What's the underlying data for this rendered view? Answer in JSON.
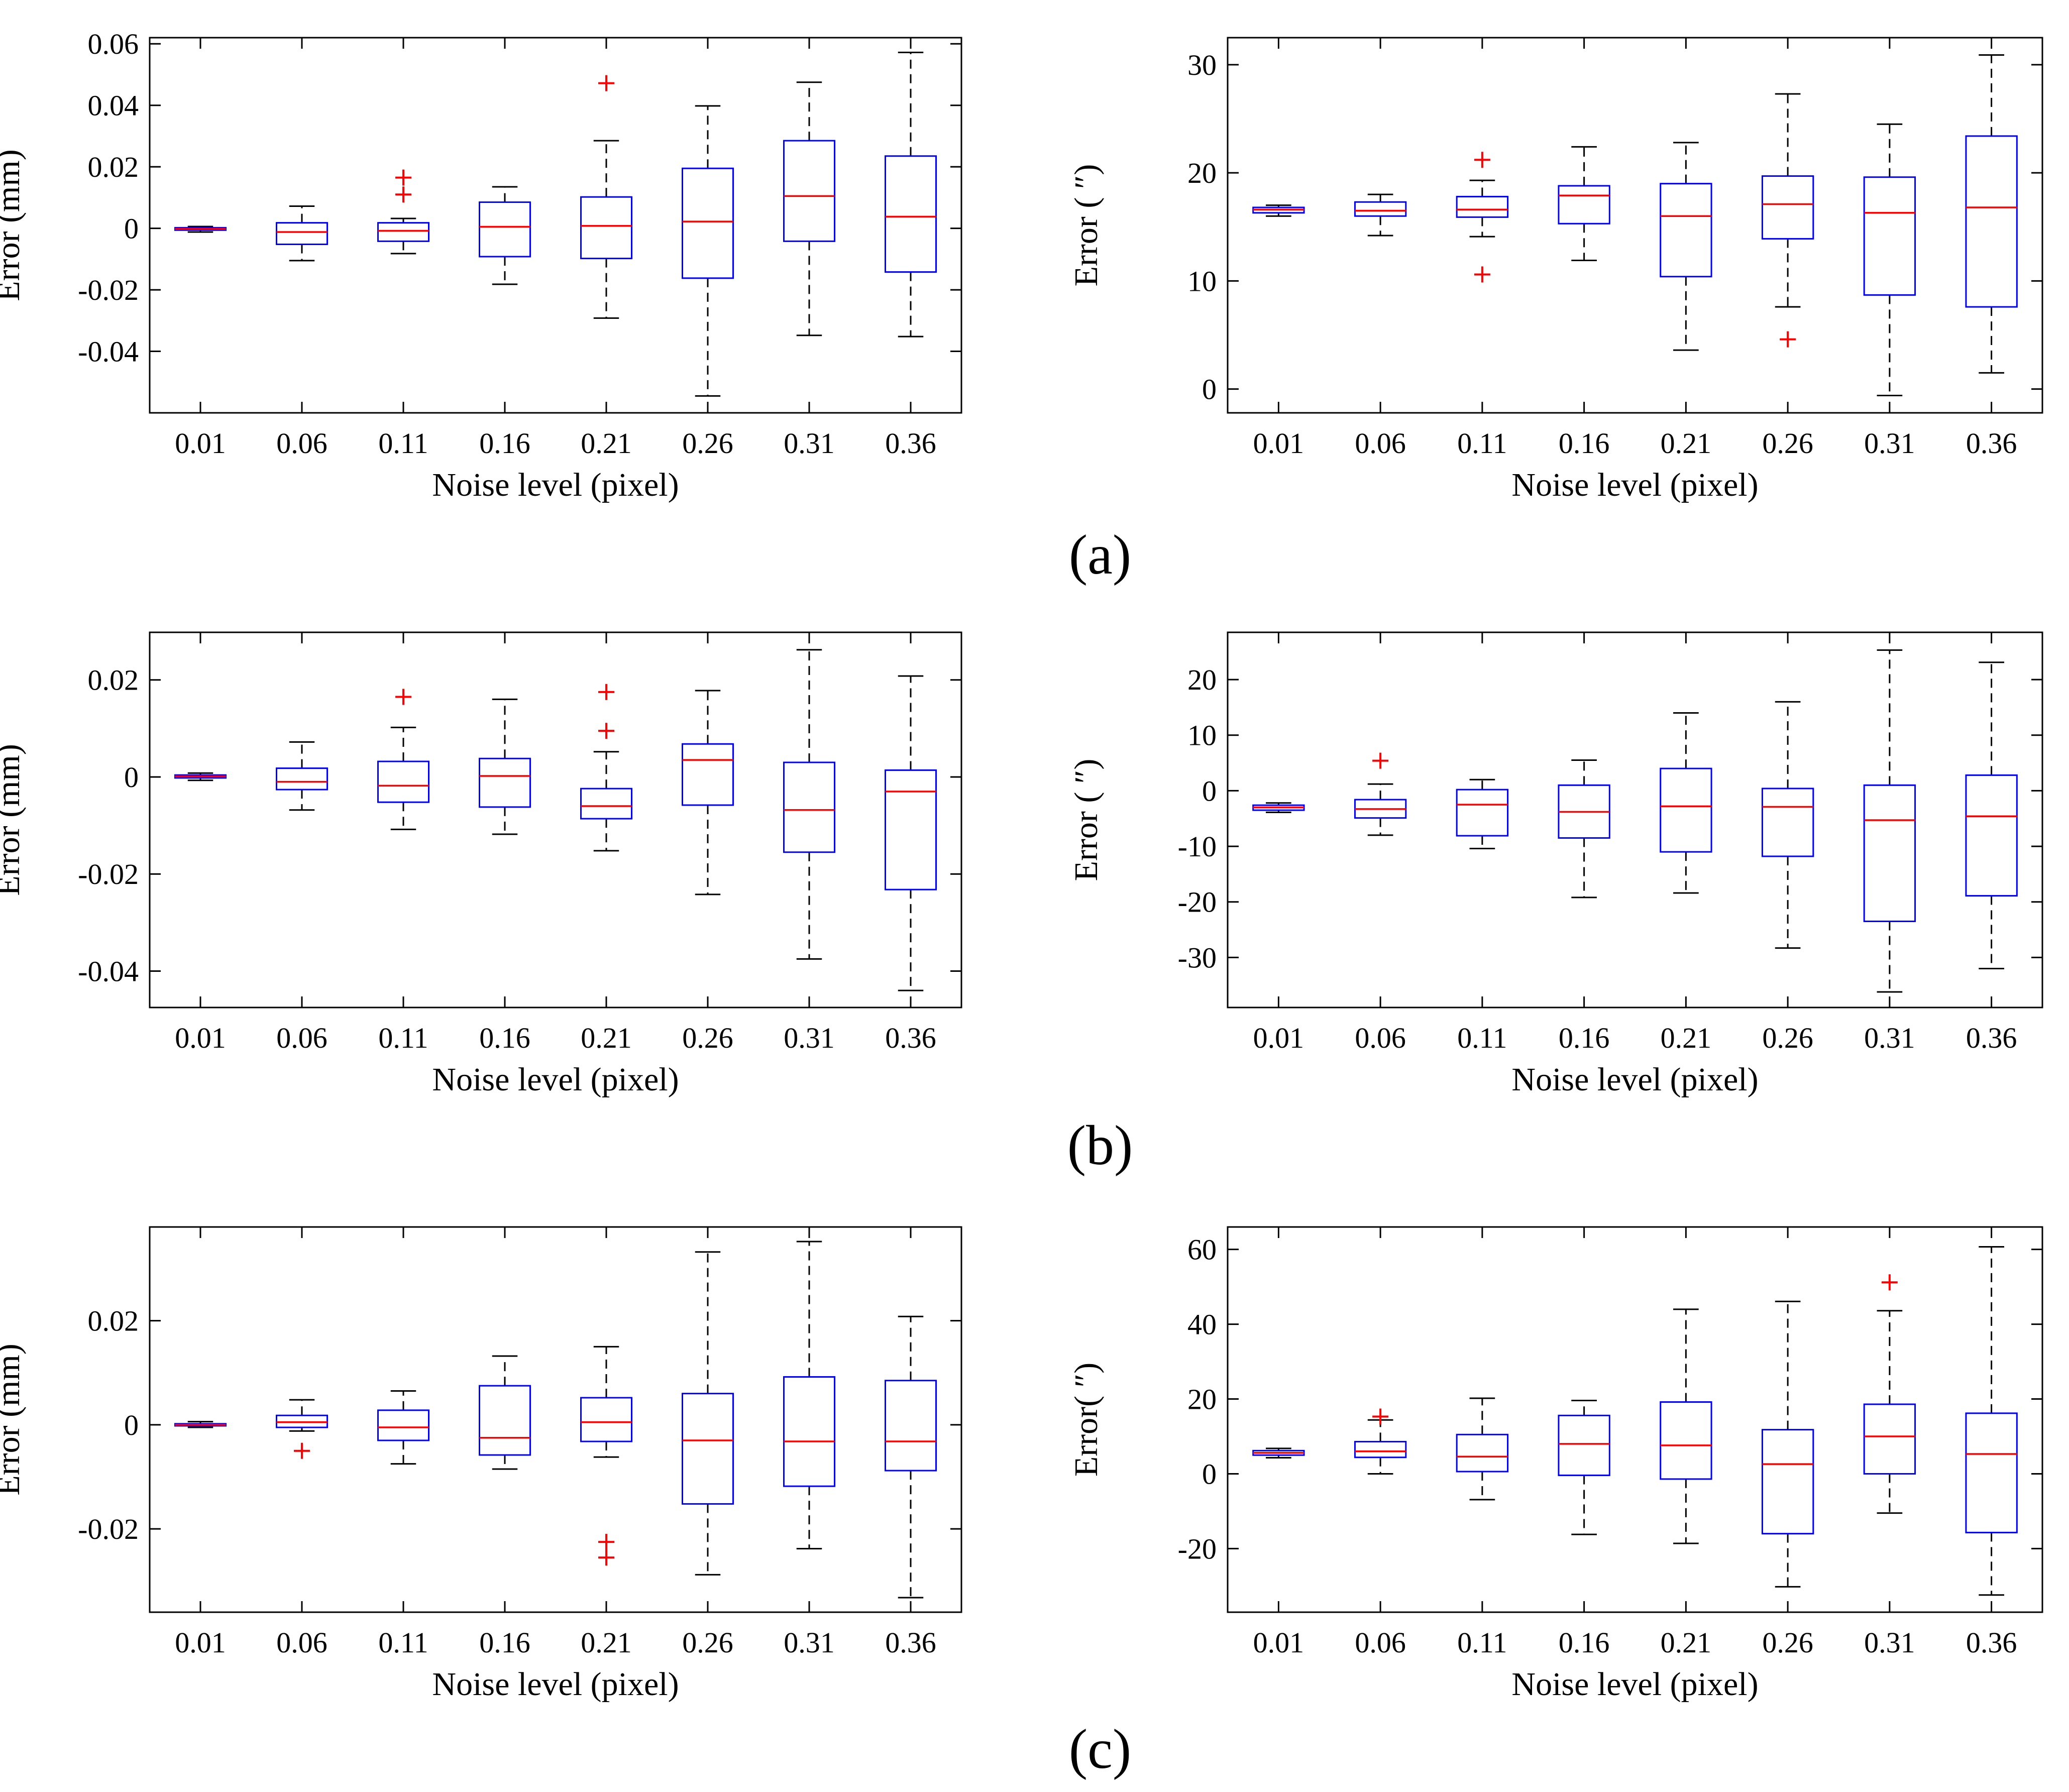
{
  "colors": {
    "box": "#0000ff",
    "median": "#ff0000",
    "outlier": "#ff0000",
    "whisker": "#000000",
    "axis": "#000000"
  },
  "figure_labels": [
    "(a)",
    "(b)",
    "(c)"
  ],
  "chart_data": [
    {
      "type": "boxplot",
      "row": 0,
      "col": 0,
      "xlabel": "Noise level (pixel)",
      "ylabel": "Error (mm)",
      "categories": [
        "0.01",
        "0.06",
        "0.11",
        "0.16",
        "0.21",
        "0.26",
        "0.31",
        "0.36"
      ],
      "ylim": [
        -0.06,
        0.062
      ],
      "yticks": [
        -0.04,
        -0.02,
        0,
        0.02,
        0.04,
        0.06
      ],
      "ytick_labels": [
        "-0.04",
        "-0.02",
        "0",
        "0.02",
        "0.04",
        "0.06"
      ],
      "boxes": [
        {
          "lw": -0.0012,
          "q1": -0.0006,
          "med": -0.0002,
          "q3": 0.0002,
          "uw": 0.0006,
          "out": []
        },
        {
          "lw": -0.0105,
          "q1": -0.0052,
          "med": -0.0012,
          "q3": 0.0018,
          "uw": 0.0072,
          "out": []
        },
        {
          "lw": -0.0082,
          "q1": -0.0042,
          "med": -0.0008,
          "q3": 0.0018,
          "uw": 0.0032,
          "out": [
            0.011,
            0.0165
          ]
        },
        {
          "lw": -0.0182,
          "q1": -0.0092,
          "med": 0.0005,
          "q3": 0.0085,
          "uw": 0.0135,
          "out": []
        },
        {
          "lw": -0.0292,
          "q1": -0.0098,
          "med": 0.0008,
          "q3": 0.0102,
          "uw": 0.0285,
          "out": [
            0.0472
          ]
        },
        {
          "lw": -0.0545,
          "q1": -0.0162,
          "med": 0.0022,
          "q3": 0.0195,
          "uw": 0.0398,
          "out": []
        },
        {
          "lw": -0.0348,
          "q1": -0.0042,
          "med": 0.0105,
          "q3": 0.0285,
          "uw": 0.0475,
          "out": []
        },
        {
          "lw": -0.0352,
          "q1": -0.0142,
          "med": 0.0038,
          "q3": 0.0235,
          "uw": 0.0572,
          "out": []
        }
      ]
    },
    {
      "type": "boxplot",
      "row": 0,
      "col": 1,
      "xlabel": "Noise level (pixel)",
      "ylabel": "Error ( ″)",
      "categories": [
        "0.01",
        "0.06",
        "0.11",
        "0.16",
        "0.21",
        "0.26",
        "0.31",
        "0.36"
      ],
      "ylim": [
        -2.2,
        32.5
      ],
      "yticks": [
        0,
        10,
        20,
        30
      ],
      "ytick_labels": [
        "0",
        "10",
        "20",
        "30"
      ],
      "boxes": [
        {
          "lw": 16.0,
          "q1": 16.3,
          "med": 16.6,
          "q3": 16.8,
          "uw": 17.0,
          "out": []
        },
        {
          "lw": 14.2,
          "q1": 16.0,
          "med": 16.5,
          "q3": 17.3,
          "uw": 18.0,
          "out": []
        },
        {
          "lw": 14.1,
          "q1": 15.9,
          "med": 16.6,
          "q3": 17.8,
          "uw": 19.3,
          "out": [
            10.6,
            21.2
          ]
        },
        {
          "lw": 11.9,
          "q1": 15.3,
          "med": 17.9,
          "q3": 18.8,
          "uw": 22.4,
          "out": []
        },
        {
          "lw": 3.6,
          "q1": 10.4,
          "med": 16.0,
          "q3": 19.0,
          "uw": 22.8,
          "out": []
        },
        {
          "lw": 7.6,
          "q1": 13.9,
          "med": 17.1,
          "q3": 19.7,
          "uw": 27.3,
          "out": [
            4.6
          ]
        },
        {
          "lw": -0.6,
          "q1": 8.7,
          "med": 16.3,
          "q3": 19.6,
          "uw": 24.5,
          "out": []
        },
        {
          "lw": 1.5,
          "q1": 7.6,
          "med": 16.8,
          "q3": 23.4,
          "uw": 30.9,
          "out": []
        }
      ]
    },
    {
      "type": "boxplot",
      "row": 1,
      "col": 0,
      "xlabel": "Noise level (pixel)",
      "ylabel": "Error (mm)",
      "categories": [
        "0.01",
        "0.06",
        "0.11",
        "0.16",
        "0.21",
        "0.26",
        "0.31",
        "0.36"
      ],
      "ylim": [
        -0.0475,
        0.0298
      ],
      "yticks": [
        -0.04,
        -0.02,
        0,
        0.02
      ],
      "ytick_labels": [
        "-0.04",
        "-0.02",
        "0",
        "0.02"
      ],
      "boxes": [
        {
          "lw": -0.0007,
          "q1": -0.0002,
          "med": 0.0001,
          "q3": 0.0004,
          "uw": 0.0008,
          "out": []
        },
        {
          "lw": -0.0068,
          "q1": -0.0026,
          "med": -0.001,
          "q3": 0.0018,
          "uw": 0.0072,
          "out": []
        },
        {
          "lw": -0.0108,
          "q1": -0.0052,
          "med": -0.0018,
          "q3": 0.0032,
          "uw": 0.0102,
          "out": [
            0.0165
          ]
        },
        {
          "lw": -0.0118,
          "q1": -0.0062,
          "med": 0.0002,
          "q3": 0.0038,
          "uw": 0.016,
          "out": []
        },
        {
          "lw": -0.0152,
          "q1": -0.0086,
          "med": -0.006,
          "q3": -0.0024,
          "uw": 0.0052,
          "out": [
            0.0095,
            0.0175
          ]
        },
        {
          "lw": -0.0242,
          "q1": -0.0058,
          "med": 0.0035,
          "q3": 0.0068,
          "uw": 0.0178,
          "out": []
        },
        {
          "lw": -0.0375,
          "q1": -0.0155,
          "med": -0.0068,
          "q3": 0.003,
          "uw": 0.0262,
          "out": []
        },
        {
          "lw": -0.044,
          "q1": -0.0232,
          "med": -0.003,
          "q3": 0.0014,
          "uw": 0.0208,
          "out": []
        }
      ]
    },
    {
      "type": "boxplot",
      "row": 1,
      "col": 1,
      "xlabel": "Noise level (pixel)",
      "ylabel": "Error ( ″)",
      "categories": [
        "0.01",
        "0.06",
        "0.11",
        "0.16",
        "0.21",
        "0.26",
        "0.31",
        "0.36"
      ],
      "ylim": [
        -39,
        28.5
      ],
      "yticks": [
        -30,
        -20,
        -10,
        0,
        10,
        20
      ],
      "ytick_labels": [
        "-30",
        "-20",
        "-10",
        "0",
        "10",
        "20"
      ],
      "boxes": [
        {
          "lw": -3.9,
          "q1": -3.5,
          "med": -3.0,
          "q3": -2.6,
          "uw": -2.2,
          "out": []
        },
        {
          "lw": -8.0,
          "q1": -4.9,
          "med": -3.3,
          "q3": -1.6,
          "uw": 1.2,
          "out": [
            5.4
          ]
        },
        {
          "lw": -10.4,
          "q1": -8.1,
          "med": -2.5,
          "q3": 0.2,
          "uw": 2.0,
          "out": []
        },
        {
          "lw": -19.2,
          "q1": -8.5,
          "med": -3.8,
          "q3": 1.0,
          "uw": 5.5,
          "out": []
        },
        {
          "lw": -18.4,
          "q1": -11.0,
          "med": -2.8,
          "q3": 4.0,
          "uw": 14.0,
          "out": []
        },
        {
          "lw": -28.3,
          "q1": -11.8,
          "med": -2.9,
          "q3": 0.4,
          "uw": 16.0,
          "out": []
        },
        {
          "lw": -36.2,
          "q1": -23.5,
          "med": -5.3,
          "q3": 1.0,
          "uw": 25.3,
          "out": []
        },
        {
          "lw": -32.0,
          "q1": -18.9,
          "med": -4.6,
          "q3": 2.8,
          "uw": 23.1,
          "out": []
        }
      ]
    },
    {
      "type": "boxplot",
      "row": 2,
      "col": 0,
      "xlabel": "Noise level (pixel)",
      "ylabel": "Error (mm)",
      "categories": [
        "0.01",
        "0.06",
        "0.11",
        "0.16",
        "0.21",
        "0.26",
        "0.31",
        "0.36"
      ],
      "ylim": [
        -0.036,
        0.038
      ],
      "yticks": [
        -0.02,
        0,
        0.02
      ],
      "ytick_labels": [
        "-0.02",
        "0",
        "0.02"
      ],
      "boxes": [
        {
          "lw": -0.0005,
          "q1": -0.0002,
          "med": 0.0,
          "q3": 0.0002,
          "uw": 0.0006,
          "out": []
        },
        {
          "lw": -0.0012,
          "q1": -0.0005,
          "med": 0.0005,
          "q3": 0.0018,
          "uw": 0.0048,
          "out": [
            -0.005
          ]
        },
        {
          "lw": -0.0075,
          "q1": -0.003,
          "med": -0.0005,
          "q3": 0.0028,
          "uw": 0.0065,
          "out": []
        },
        {
          "lw": -0.0085,
          "q1": -0.0058,
          "med": -0.0025,
          "q3": 0.0075,
          "uw": 0.0132,
          "out": []
        },
        {
          "lw": -0.0062,
          "q1": -0.0032,
          "med": 0.0005,
          "q3": 0.0052,
          "uw": 0.015,
          "out": [
            -0.0225,
            -0.0255
          ]
        },
        {
          "lw": -0.0288,
          "q1": -0.0152,
          "med": -0.003,
          "q3": 0.006,
          "uw": 0.0332,
          "out": []
        },
        {
          "lw": -0.0238,
          "q1": -0.0118,
          "med": -0.0032,
          "q3": 0.0092,
          "uw": 0.0352,
          "out": []
        },
        {
          "lw": -0.0332,
          "q1": -0.0088,
          "med": -0.0032,
          "q3": 0.0085,
          "uw": 0.0208,
          "out": []
        }
      ]
    },
    {
      "type": "boxplot",
      "row": 2,
      "col": 1,
      "xlabel": "Noise level (pixel)",
      "ylabel": "Error( ″)",
      "categories": [
        "0.01",
        "0.06",
        "0.11",
        "0.16",
        "0.21",
        "0.26",
        "0.31",
        "0.36"
      ],
      "ylim": [
        -37,
        66
      ],
      "yticks": [
        -20,
        0,
        20,
        40,
        60
      ],
      "ytick_labels": [
        "-20",
        "0",
        "20",
        "40",
        "60"
      ],
      "boxes": [
        {
          "lw": 4.3,
          "q1": 5.0,
          "med": 5.6,
          "q3": 6.2,
          "uw": 6.8,
          "out": []
        },
        {
          "lw": 0.0,
          "q1": 4.4,
          "med": 6.0,
          "q3": 8.6,
          "uw": 14.4,
          "out": [
            15.3
          ]
        },
        {
          "lw": -6.9,
          "q1": 0.6,
          "med": 4.6,
          "q3": 10.5,
          "uw": 20.2,
          "out": []
        },
        {
          "lw": -16.2,
          "q1": -0.4,
          "med": 8.0,
          "q3": 15.6,
          "uw": 19.6,
          "out": []
        },
        {
          "lw": -18.6,
          "q1": -1.4,
          "med": 7.6,
          "q3": 19.2,
          "uw": 44.0,
          "out": []
        },
        {
          "lw": -30.2,
          "q1": -16.0,
          "med": 2.6,
          "q3": 11.8,
          "uw": 46.1,
          "out": []
        },
        {
          "lw": -10.5,
          "q1": 0.0,
          "med": 10.0,
          "q3": 18.6,
          "uw": 43.6,
          "out": [
            51.2
          ]
        },
        {
          "lw": -32.4,
          "q1": -15.7,
          "med": 5.3,
          "q3": 16.2,
          "uw": 60.7,
          "out": []
        }
      ]
    }
  ]
}
